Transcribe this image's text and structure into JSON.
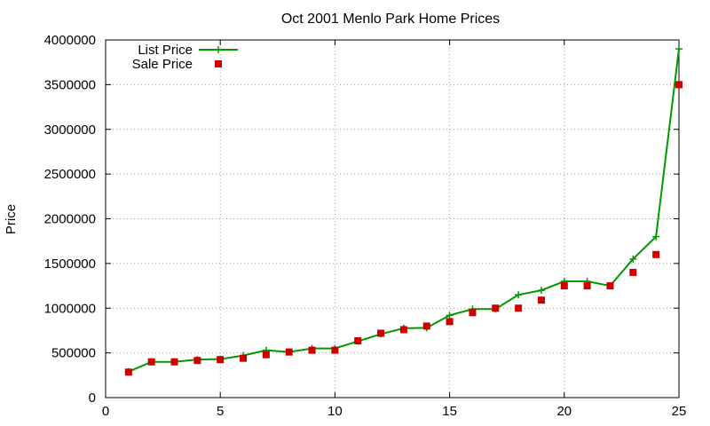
{
  "chart_data": {
    "type": "line",
    "title": "Oct 2001 Menlo Park Home Prices",
    "xlabel": "",
    "ylabel": "Price",
    "xlim": [
      0,
      25
    ],
    "ylim": [
      0,
      4000000
    ],
    "x_ticks": [
      0,
      5,
      10,
      15,
      20,
      25
    ],
    "y_ticks": [
      0,
      500000,
      1000000,
      1500000,
      2000000,
      2500000,
      3000000,
      3500000,
      4000000
    ],
    "grid": true,
    "legend_position": "top-left",
    "series": [
      {
        "name": "List Price",
        "kind": "line",
        "color": "#009900",
        "marker": "plus",
        "x": [
          1,
          2,
          3,
          4,
          5,
          6,
          7,
          8,
          9,
          10,
          11,
          12,
          13,
          14,
          15,
          16,
          17,
          18,
          19,
          20,
          21,
          22,
          23,
          24,
          25
        ],
        "values": [
          290000,
          400000,
          400000,
          425000,
          430000,
          470000,
          530000,
          510000,
          550000,
          550000,
          630000,
          710000,
          775000,
          780000,
          920000,
          990000,
          990000,
          1150000,
          1200000,
          1300000,
          1300000,
          1250000,
          1550000,
          1800000,
          3900000
        ]
      },
      {
        "name": "Sale Price",
        "kind": "points",
        "color": "#cc0000",
        "marker": "square",
        "x": [
          1,
          2,
          3,
          4,
          5,
          6,
          7,
          8,
          9,
          10,
          11,
          12,
          13,
          14,
          15,
          16,
          17,
          18,
          19,
          20,
          21,
          22,
          23,
          24,
          25
        ],
        "values": [
          285000,
          400000,
          400000,
          415000,
          425000,
          440000,
          480000,
          510000,
          530000,
          530000,
          635000,
          720000,
          760000,
          800000,
          850000,
          950000,
          1000000,
          1000000,
          1090000,
          1250000,
          1250000,
          1250000,
          1400000,
          1600000,
          3500000
        ]
      }
    ]
  }
}
